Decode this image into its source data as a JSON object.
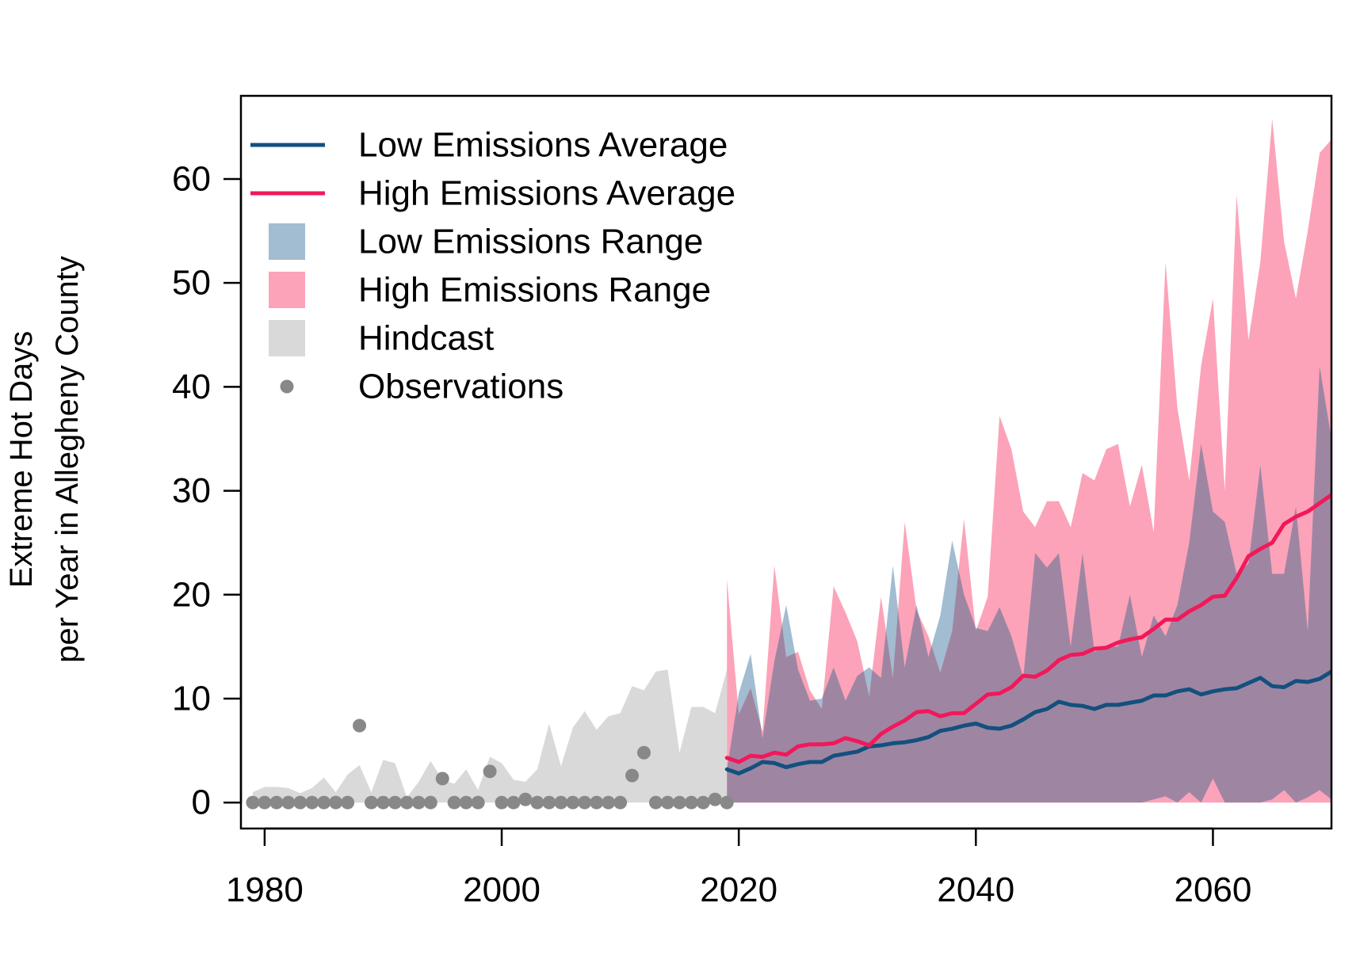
{
  "chart_data": {
    "type": "line",
    "title": "",
    "xlabel": "",
    "ylabel_lines": [
      "Extreme Hot Days",
      "per Year in Allegheny County"
    ],
    "xlim": [
      1978,
      2070
    ],
    "ylim": [
      -2.5,
      68
    ],
    "x_ticks": [
      1980,
      2000,
      2020,
      2040,
      2060
    ],
    "y_ticks": [
      0,
      10,
      20,
      30,
      40,
      50,
      60
    ],
    "grid": false,
    "legend_position": "top-left",
    "colors": {
      "low_avg": "#14507e",
      "high_avg": "#f2185a",
      "low_range": "#a2bcd1",
      "high_range": "#fca3b9",
      "overlap": "#9e86a3",
      "hindcast": "#d9d9d9",
      "observations": "#888888"
    },
    "legend": [
      {
        "label": "Low Emissions Average",
        "kind": "line",
        "color": "#14507e"
      },
      {
        "label": "High Emissions Average",
        "kind": "line",
        "color": "#f2185a"
      },
      {
        "label": "Low Emissions Range",
        "kind": "box",
        "color": "#a2bcd1"
      },
      {
        "label": "High Emissions Range",
        "kind": "box",
        "color": "#fca3b9"
      },
      {
        "label": "Hindcast",
        "kind": "box",
        "color": "#d9d9d9"
      },
      {
        "label": "Observations",
        "kind": "point",
        "color": "#888888"
      }
    ],
    "observations": {
      "x": [
        1979,
        1980,
        1981,
        1982,
        1983,
        1984,
        1985,
        1986,
        1987,
        1988,
        1989,
        1990,
        1991,
        1992,
        1993,
        1994,
        1995,
        1996,
        1997,
        1998,
        1999,
        2000,
        2001,
        2002,
        2003,
        2004,
        2005,
        2006,
        2007,
        2008,
        2009,
        2010,
        2011,
        2012,
        2013,
        2014,
        2015,
        2016,
        2017,
        2018,
        2019
      ],
      "y": [
        0,
        0,
        0,
        0,
        0,
        0,
        0,
        0,
        0,
        7.4,
        0,
        0,
        0,
        0,
        0,
        0,
        2.3,
        0,
        0,
        0,
        3.0,
        0,
        0,
        0.3,
        0,
        0,
        0,
        0,
        0,
        0,
        0,
        0,
        2.6,
        4.8,
        0,
        0,
        0,
        0,
        0,
        0.3,
        0
      ]
    },
    "hindcast": {
      "x": [
        1979,
        1980,
        1981,
        1982,
        1983,
        1984,
        1985,
        1986,
        1987,
        1988,
        1989,
        1990,
        1991,
        1992,
        1993,
        1994,
        1995,
        1996,
        1997,
        1998,
        1999,
        2000,
        2001,
        2002,
        2003,
        2004,
        2005,
        2006,
        2007,
        2008,
        2009,
        2010,
        2011,
        2012,
        2013,
        2014,
        2015,
        2016,
        2017,
        2018,
        2019
      ],
      "lower": [
        0,
        0,
        0,
        0,
        0,
        0,
        0,
        0,
        0,
        0,
        0,
        0,
        0,
        0,
        0,
        0,
        0,
        0,
        0,
        0,
        0,
        0,
        0,
        0,
        0,
        0,
        0,
        0,
        0,
        0,
        0,
        0,
        0,
        0,
        0,
        0,
        0,
        0,
        0,
        0,
        0
      ],
      "upper": [
        1.0,
        1.5,
        1.5,
        1.4,
        0.9,
        1.4,
        2.4,
        1.0,
        2.7,
        3.6,
        1.0,
        4.1,
        3.8,
        0.5,
        2.0,
        4.0,
        2.2,
        1.8,
        3.2,
        1.2,
        4.4,
        3.8,
        2.2,
        2.0,
        3.2,
        7.6,
        3.5,
        7.2,
        8.8,
        7.0,
        8.3,
        8.6,
        11.2,
        10.8,
        12.6,
        12.8,
        4.8,
        9.2,
        9.2,
        8.6,
        12.8
      ]
    },
    "low_range": {
      "x": [
        2019,
        2020,
        2021,
        2022,
        2023,
        2024,
        2025,
        2026,
        2027,
        2028,
        2029,
        2030,
        2031,
        2032,
        2033,
        2034,
        2035,
        2036,
        2037,
        2038,
        2039,
        2040,
        2041,
        2042,
        2043,
        2044,
        2045,
        2046,
        2047,
        2048,
        2049,
        2050,
        2051,
        2052,
        2053,
        2054,
        2055,
        2056,
        2057,
        2058,
        2059,
        2060,
        2061,
        2062,
        2063,
        2064,
        2065,
        2066,
        2067,
        2068,
        2069,
        2070
      ],
      "lower": [
        0,
        0,
        0,
        0,
        0,
        0,
        0,
        0,
        0,
        0,
        0,
        0,
        0,
        0,
        0,
        0,
        0,
        0,
        0,
        0,
        0,
        0,
        0,
        0,
        0,
        0,
        0,
        0,
        0,
        0,
        0,
        0,
        0,
        0,
        0,
        0,
        0.3,
        0.6,
        0,
        1.0,
        0,
        2.3,
        0,
        0,
        0,
        0,
        0.3,
        1.2,
        0,
        0.5,
        1.2,
        0.3
      ],
      "upper": [
        3.2,
        10.5,
        14.3,
        6.2,
        13.6,
        19.0,
        12.8,
        9.8,
        10.0,
        13.0,
        9.8,
        12.2,
        13.0,
        12.0,
        22.8,
        13.0,
        19.0,
        14.0,
        18.0,
        25.2,
        20.0,
        16.8,
        16.5,
        18.8,
        16.0,
        12.0,
        24.0,
        22.6,
        24.0,
        15.0,
        24.0,
        14.5,
        15.0,
        15.0,
        20.0,
        14.0,
        18.0,
        16.0,
        19.0,
        25.0,
        34.5,
        28.0,
        27.0,
        22.0,
        23.0,
        32.5,
        22.0,
        22.0,
        28.5,
        16.5,
        42.0,
        35.0
      ]
    },
    "high_range": {
      "x": [
        2019,
        2020,
        2021,
        2022,
        2023,
        2024,
        2025,
        2026,
        2027,
        2028,
        2029,
        2030,
        2031,
        2032,
        2033,
        2034,
        2035,
        2036,
        2037,
        2038,
        2039,
        2040,
        2041,
        2042,
        2043,
        2044,
        2045,
        2046,
        2047,
        2048,
        2049,
        2050,
        2051,
        2052,
        2053,
        2054,
        2055,
        2056,
        2057,
        2058,
        2059,
        2060,
        2061,
        2062,
        2063,
        2064,
        2065,
        2066,
        2067,
        2068,
        2069,
        2070
      ],
      "lower": [
        0,
        0,
        0,
        0,
        0,
        0,
        0,
        0,
        0,
        0,
        0,
        0,
        0,
        0,
        0,
        0,
        0,
        0,
        0,
        0,
        0,
        0,
        0,
        0,
        0,
        0,
        0,
        0,
        0,
        0,
        0,
        0,
        0,
        0,
        0,
        0,
        0,
        0,
        0,
        0,
        0,
        0,
        0,
        0,
        0,
        0,
        0,
        0,
        0,
        0,
        0,
        0
      ],
      "upper": [
        21.5,
        8.5,
        11.0,
        6.8,
        22.8,
        14.0,
        14.5,
        10.8,
        9.0,
        20.8,
        18.3,
        15.5,
        10.2,
        19.8,
        12.0,
        27.0,
        18.5,
        16.0,
        12.5,
        16.5,
        27.3,
        16.5,
        19.8,
        37.2,
        34.0,
        28.0,
        26.5,
        29.0,
        29.0,
        26.5,
        31.7,
        31.0,
        34.0,
        34.5,
        28.5,
        32.5,
        26.0,
        52.0,
        38.0,
        31.0,
        42.0,
        48.5,
        30.0,
        58.5,
        44.5,
        52.0,
        65.8,
        54.0,
        48.5,
        55.0,
        62.5,
        63.8
      ]
    },
    "series": [
      {
        "name": "Low Emissions Average",
        "x": [
          2019,
          2020,
          2021,
          2022,
          2023,
          2024,
          2025,
          2026,
          2027,
          2028,
          2029,
          2030,
          2031,
          2032,
          2033,
          2034,
          2035,
          2036,
          2037,
          2038,
          2039,
          2040,
          2041,
          2042,
          2043,
          2044,
          2045,
          2046,
          2047,
          2048,
          2049,
          2050,
          2051,
          2052,
          2053,
          2054,
          2055,
          2056,
          2057,
          2058,
          2059,
          2060,
          2061,
          2062,
          2063,
          2064,
          2065,
          2066,
          2067,
          2068,
          2069,
          2070
        ],
        "y": [
          3.2,
          2.8,
          3.3,
          3.9,
          3.8,
          3.4,
          3.7,
          3.9,
          3.9,
          4.5,
          4.7,
          4.9,
          5.4,
          5.5,
          5.7,
          5.8,
          6.0,
          6.3,
          6.9,
          7.1,
          7.4,
          7.6,
          7.2,
          7.1,
          7.4,
          8.0,
          8.7,
          9.0,
          9.7,
          9.4,
          9.3,
          9.0,
          9.4,
          9.4,
          9.6,
          9.8,
          10.3,
          10.3,
          10.7,
          10.9,
          10.4,
          10.7,
          10.9,
          11.0,
          11.5,
          12.0,
          11.2,
          11.1,
          11.7,
          11.6,
          11.9,
          12.6
        ]
      },
      {
        "name": "High Emissions Average",
        "x": [
          2019,
          2020,
          2021,
          2022,
          2023,
          2024,
          2025,
          2026,
          2027,
          2028,
          2029,
          2030,
          2031,
          2032,
          2033,
          2034,
          2035,
          2036,
          2037,
          2038,
          2039,
          2040,
          2041,
          2042,
          2043,
          2044,
          2045,
          2046,
          2047,
          2048,
          2049,
          2050,
          2051,
          2052,
          2053,
          2054,
          2055,
          2056,
          2057,
          2058,
          2059,
          2060,
          2061,
          2062,
          2063,
          2064,
          2065,
          2066,
          2067,
          2068,
          2069,
          2070
        ],
        "y": [
          4.3,
          3.9,
          4.5,
          4.4,
          4.8,
          4.6,
          5.4,
          5.6,
          5.6,
          5.7,
          6.2,
          5.9,
          5.5,
          6.6,
          7.3,
          7.9,
          8.7,
          8.8,
          8.3,
          8.6,
          8.6,
          9.5,
          10.4,
          10.5,
          11.1,
          12.2,
          12.1,
          12.7,
          13.7,
          14.2,
          14.3,
          14.8,
          14.9,
          15.4,
          15.7,
          15.9,
          16.7,
          17.6,
          17.6,
          18.4,
          19.0,
          19.8,
          19.9,
          21.6,
          23.7,
          24.4,
          25.0,
          26.8,
          27.5,
          28.0,
          28.8,
          29.6
        ]
      }
    ]
  }
}
